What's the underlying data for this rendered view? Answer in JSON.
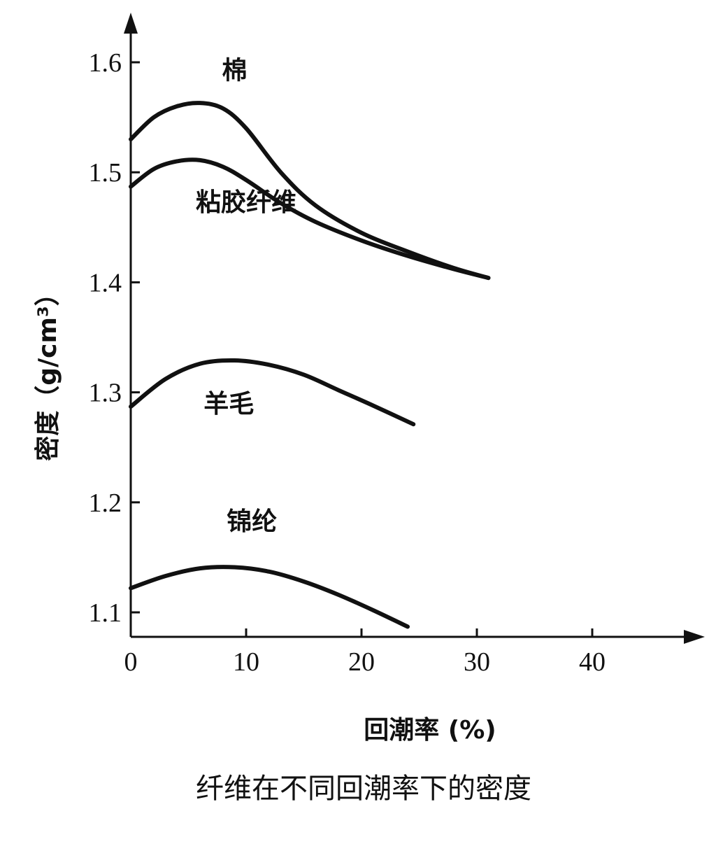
{
  "caption": "纤维在不同回潮率下的密度",
  "chart_data": {
    "type": "line",
    "xlabel": "回潮率 (%)",
    "ylabel": "密度（g/cm³）",
    "x_ticks": [
      "0",
      "10",
      "20",
      "30",
      "40"
    ],
    "y_ticks": [
      "1.1",
      "1.2",
      "1.3",
      "1.4",
      "1.5",
      "1.6"
    ],
    "xlim": [
      0,
      50
    ],
    "ylim": [
      1.08,
      1.68
    ],
    "grid": false,
    "series": [
      {
        "name": "棉",
        "x": [
          0,
          2,
          4,
          6,
          8,
          10,
          13,
          16,
          20,
          24,
          28,
          31
        ],
        "values": [
          1.53,
          1.55,
          1.56,
          1.563,
          1.558,
          1.54,
          1.5,
          1.47,
          1.445,
          1.428,
          1.413,
          1.404
        ]
      },
      {
        "name": "粘胶纤维",
        "x": [
          0,
          2,
          4,
          6,
          8,
          10,
          13,
          16,
          20,
          24,
          28,
          31
        ],
        "values": [
          1.487,
          1.503,
          1.51,
          1.511,
          1.505,
          1.493,
          1.472,
          1.455,
          1.438,
          1.424,
          1.412,
          1.404
        ]
      },
      {
        "name": "羊毛",
        "x": [
          0,
          3,
          6,
          9,
          12,
          15,
          18,
          21,
          24.5
        ],
        "values": [
          1.287,
          1.312,
          1.326,
          1.329,
          1.325,
          1.316,
          1.302,
          1.288,
          1.271
        ]
      },
      {
        "name": "锦纶",
        "x": [
          0,
          3,
          6,
          9,
          12,
          15,
          18,
          21,
          24
        ],
        "values": [
          1.122,
          1.133,
          1.14,
          1.141,
          1.137,
          1.128,
          1.116,
          1.102,
          1.087
        ]
      }
    ]
  },
  "series_label_anchor": {
    "棉": [
      9,
      1.585
    ],
    "粘胶纤维": [
      10,
      1.465
    ],
    "羊毛": [
      8.5,
      1.282
    ],
    "锦纶": [
      10.5,
      1.175
    ]
  }
}
